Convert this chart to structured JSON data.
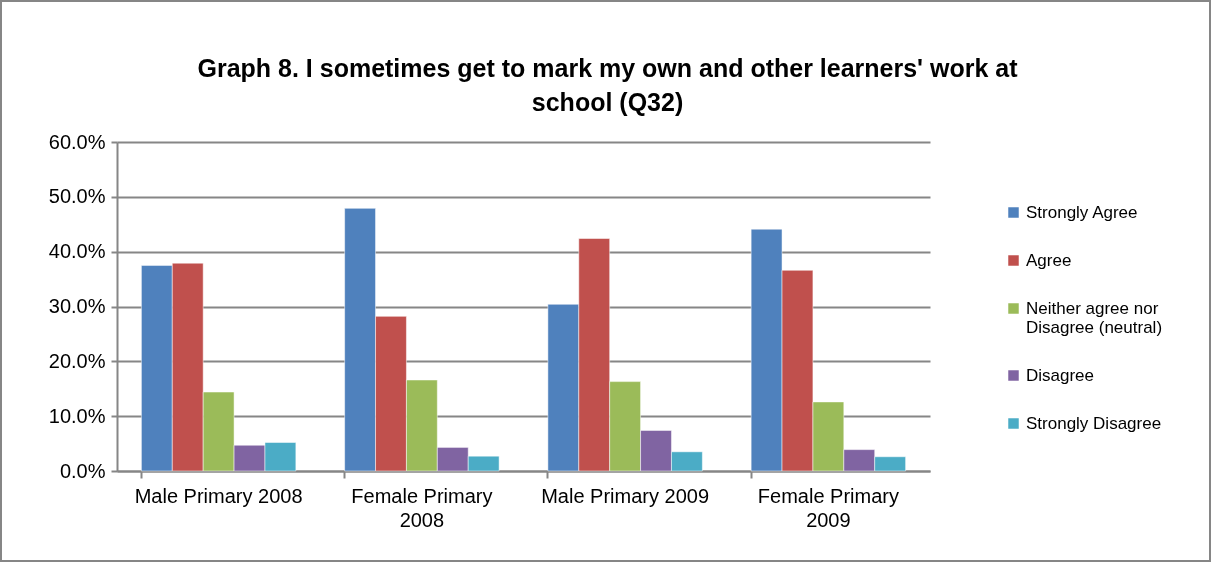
{
  "chart_data": {
    "type": "bar",
    "title": "Graph 8. I sometimes get to mark my own and other learners' work at school (Q32)",
    "categories": [
      "Male Primary 2008",
      "Female Primary 2008",
      "Male Primary 2009",
      "Female Primary 2009"
    ],
    "series": [
      {
        "name": "Strongly Agree",
        "color": "#4f81bd",
        "values": [
          37.5,
          47.9,
          30.4,
          44.1
        ]
      },
      {
        "name": "Agree",
        "color": "#c0504d",
        "values": [
          37.9,
          28.2,
          42.4,
          36.6
        ]
      },
      {
        "name": "Neither agree nor Disagree (neutral)",
        "color": "#9bbb59",
        "values": [
          14.4,
          16.6,
          16.3,
          12.6
        ]
      },
      {
        "name": "Disagree",
        "color": "#8064a2",
        "values": [
          4.7,
          4.3,
          7.4,
          3.9
        ]
      },
      {
        "name": "Strongly Disagree",
        "color": "#4bacc6",
        "values": [
          5.2,
          2.7,
          3.5,
          2.6
        ]
      }
    ],
    "ylim": [
      0,
      60
    ],
    "yticks": [
      {
        "value": 0,
        "label": "0.0%"
      },
      {
        "value": 10,
        "label": "10.0%"
      },
      {
        "value": 20,
        "label": "20.0%"
      },
      {
        "value": 30,
        "label": "30.0%"
      },
      {
        "value": 40,
        "label": "40.0%"
      },
      {
        "value": 50,
        "label": "50.0%"
      },
      {
        "value": 60,
        "label": "60.0%"
      }
    ],
    "grid": "y",
    "legend": "right"
  }
}
